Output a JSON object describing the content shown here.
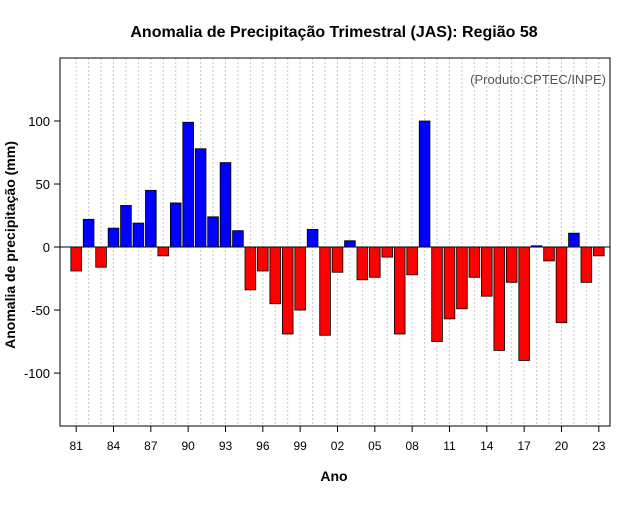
{
  "chart_data": {
    "type": "bar",
    "title": "Anomalia de Precipitação Trimestral (JAS): Região 58",
    "credit": "(Produto:CPTEC/INPE)",
    "xlabel": "Ano",
    "ylabel": "Anomalia de precipitação (mm)",
    "ylim": [
      -142,
      150
    ],
    "yticks": [
      -100,
      -50,
      0,
      50,
      100
    ],
    "xlim": [
      1979.7,
      2023.9
    ],
    "xtick_years": [
      1981,
      1984,
      1987,
      1990,
      1993,
      1996,
      1999,
      2002,
      2005,
      2008,
      2011,
      2014,
      2017,
      2020,
      2023
    ],
    "xtick_labels": [
      "81",
      "84",
      "87",
      "90",
      "93",
      "96",
      "99",
      "02",
      "05",
      "08",
      "11",
      "14",
      "17",
      "20",
      "23"
    ],
    "grid": "vertical dotted",
    "positive_color": "#0000ff",
    "negative_color": "#ff0000",
    "years": [
      1981,
      1982,
      1983,
      1984,
      1985,
      1986,
      1987,
      1988,
      1989,
      1990,
      1991,
      1992,
      1993,
      1994,
      1995,
      1996,
      1997,
      1998,
      1999,
      2000,
      2001,
      2002,
      2003,
      2004,
      2005,
      2006,
      2007,
      2008,
      2009,
      2010,
      2011,
      2012,
      2013,
      2014,
      2015,
      2016,
      2017,
      2018,
      2019,
      2020,
      2021,
      2022,
      2023
    ],
    "values": [
      -19,
      22,
      -16,
      15,
      33,
      19,
      45,
      -7,
      35,
      99,
      78,
      24,
      67,
      13,
      -34,
      -19,
      -45,
      -69,
      -50,
      14,
      -70,
      -20,
      5,
      -26,
      -24,
      -8,
      -69,
      -22,
      100,
      -75,
      -57,
      -49,
      -24,
      -39,
      -82,
      -28,
      -90,
      1,
      -11,
      -60,
      11,
      -28,
      -7
    ]
  }
}
